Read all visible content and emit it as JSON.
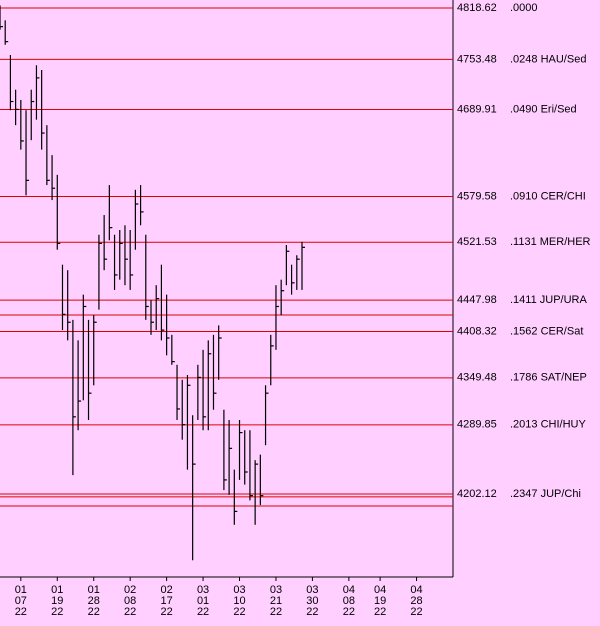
{
  "chart_data": {
    "type": "ohlc",
    "levels": [
      {
        "value": 4818.62,
        "label": ".0000"
      },
      {
        "value": 4753.48,
        "label": ".0248 HAU/Sed"
      },
      {
        "value": 4689.91,
        "label": ".0490 Eri/Sed"
      },
      {
        "value": 4579.58,
        "label": ".0910 CER/CHI"
      },
      {
        "value": 4521.53,
        "label": ".1131 MER/HER"
      },
      {
        "value": 4447.98,
        "label": ".1411 JUP/URA"
      },
      {
        "value": 4408.32,
        "label": ".1562 CER/Sat"
      },
      {
        "value": 4349.48,
        "label": ".1786 SAT/NEP"
      },
      {
        "value": 4289.85,
        "label": ".2013 CHI/HUY"
      },
      {
        "value": 4202.12,
        "label": ".2347 JUP/Chi"
      }
    ],
    "unlabeled_levels": [
      4429.2,
      4198.4,
      4186.9
    ],
    "level_color": "#e00000",
    "bar_color": "#000000",
    "high": [
      4822,
      4803,
      4759,
      4715,
      4702,
      4689,
      4715,
      4746,
      4740,
      4670,
      4632,
      4607,
      4493,
      4486,
      4423,
      4397,
      4455,
      4423,
      4429,
      4531,
      4556,
      4594,
      4531,
      4537,
      4543,
      4537,
      4588,
      4594,
      4531,
      4448,
      4467,
      4493,
      4455,
      4404,
      4366,
      4347,
      4353,
      4302,
      4366,
      4385,
      4397,
      4404,
      4416,
      4309,
      4296,
      4233,
      4296,
      4283,
      4283,
      4245,
      4252,
      4340,
      4404,
      4467,
      4474,
      4518,
      4493,
      4505,
      4522
    ],
    "low": [
      4791,
      4772,
      4689,
      4670,
      4639,
      4581,
      4651,
      4677,
      4639,
      4594,
      4575,
      4512,
      4410,
      4397,
      4226,
      4283,
      4321,
      4296,
      4340,
      4436,
      4486,
      4524,
      4461,
      4474,
      4467,
      4461,
      4512,
      4543,
      4423,
      4404,
      4410,
      4397,
      4378,
      4366,
      4296,
      4271,
      4233,
      4118,
      4296,
      4283,
      4283,
      4309,
      4347,
      4207,
      4201,
      4163,
      4220,
      4214,
      4194,
      4163,
      4188,
      4264,
      4340,
      4385,
      4429,
      4467,
      4455,
      4461,
      4461
    ],
    "close": [
      4795,
      4776,
      4700,
      4690,
      4650,
      4600,
      4700,
      4730,
      4660,
      4600,
      4590,
      4520,
      4430,
      4420,
      4300,
      4320,
      4440,
      4330,
      4420,
      4520,
      4500,
      4540,
      4480,
      4520,
      4500,
      4480,
      4570,
      4560,
      4440,
      4420,
      4450,
      4410,
      4400,
      4370,
      4310,
      4290,
      4340,
      4240,
      4350,
      4300,
      4380,
      4330,
      4400,
      4220,
      4260,
      4180,
      4280,
      4230,
      4200,
      4240,
      4200,
      4330,
      4390,
      4440,
      4460,
      4510,
      4470,
      4500,
      4515
    ],
    "xlim": [
      0,
      87
    ],
    "ylim": [
      4096.8,
      4828.8
    ],
    "xticks": [
      {
        "value": 4,
        "label": [
          "01",
          "07",
          "22"
        ]
      },
      {
        "value": 11,
        "label": [
          "01",
          "19",
          "22"
        ]
      },
      {
        "value": 18,
        "label": [
          "01",
          "28",
          "22"
        ]
      },
      {
        "value": 25,
        "label": [
          "02",
          "08",
          "22"
        ]
      },
      {
        "value": 32,
        "label": [
          "02",
          "17",
          "22"
        ]
      },
      {
        "value": 39,
        "label": [
          "03",
          "01",
          "22"
        ]
      },
      {
        "value": 46,
        "label": [
          "03",
          "10",
          "22"
        ]
      },
      {
        "value": 53,
        "label": [
          "03",
          "21",
          "22"
        ]
      },
      {
        "value": 60,
        "label": [
          "03",
          "30",
          "22"
        ]
      },
      {
        "value": 67,
        "label": [
          "04",
          "08",
          "22"
        ]
      },
      {
        "value": 73,
        "label": [
          "04",
          "19",
          "22"
        ]
      },
      {
        "value": 80,
        "label": [
          "04",
          "28",
          "22"
        ]
      }
    ]
  }
}
